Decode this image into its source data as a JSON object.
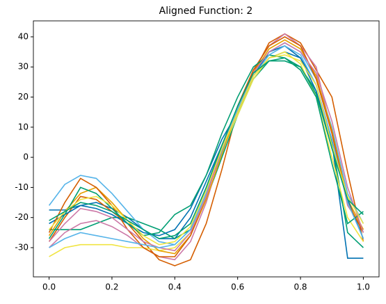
{
  "chart_data": {
    "type": "line",
    "title": "Aligned Function: 2",
    "x": [
      0,
      0.05,
      0.1,
      0.15,
      0.2,
      0.25,
      0.3,
      0.35,
      0.4,
      0.45,
      0.5,
      0.55,
      0.6,
      0.65,
      0.7,
      0.75,
      0.8,
      0.85,
      0.9,
      0.95,
      1
    ],
    "xlim": [
      -0.05,
      1.05
    ],
    "xticks": [
      {
        "value": 0,
        "label": "0.0"
      },
      0.2,
      0.4,
      0.6,
      0.8,
      {
        "value": 1,
        "label": "1.0"
      }
    ],
    "ylim": [
      -39.7,
      45.3
    ],
    "yticks": [
      -30,
      -20,
      -10,
      0,
      10,
      20,
      30,
      40
    ],
    "series": [
      {
        "color": "#0072B2",
        "values": [
          -17.5,
          -17.5,
          -16,
          -15,
          -17,
          -20,
          -24,
          -27,
          -27,
          -20,
          -8,
          4,
          15,
          26,
          33,
          35,
          33,
          24,
          5,
          -33.5,
          -33.5
        ]
      },
      {
        "color": "#D55E00",
        "values": [
          -28,
          -20,
          -13,
          -14,
          -18,
          -22,
          -28,
          -34,
          -36,
          -34,
          -22,
          -4,
          16,
          28,
          38,
          41,
          38,
          29,
          20,
          -5,
          -28
        ]
      },
      {
        "color": "#009E73",
        "values": [
          -24,
          -24,
          -24,
          -22,
          -20,
          -20,
          -22,
          -24,
          -27,
          -24,
          -14,
          0,
          14,
          26,
          32,
          33,
          30,
          22,
          5,
          -25,
          -30
        ]
      },
      {
        "color": "#CC79A7",
        "values": [
          -30,
          -25,
          -22,
          -21,
          -23,
          -26,
          -30,
          -33,
          -34,
          -28,
          -15,
          2,
          17,
          29,
          37,
          41,
          37,
          30,
          8,
          -16,
          -24
        ]
      },
      {
        "color": "#F0E442",
        "values": [
          -33,
          -30,
          -29,
          -29,
          -29,
          -30,
          -30,
          -31,
          -30,
          -25,
          -12,
          2,
          14,
          26,
          33,
          35,
          31,
          20,
          0,
          -20,
          -28
        ]
      },
      {
        "color": "#56B4E9",
        "values": [
          -16,
          -9,
          -6,
          -7,
          -12,
          -18,
          -24,
          -28,
          -29,
          -24,
          -12,
          2,
          15,
          27,
          35,
          38,
          35,
          26,
          10,
          -12,
          -22
        ]
      },
      {
        "color": "#E69F00",
        "values": [
          -26,
          -18,
          -12,
          -10,
          -15,
          -21,
          -27,
          -31,
          -32,
          -26,
          -14,
          1,
          16,
          28,
          36,
          39,
          36,
          27,
          9,
          -14,
          -24
        ]
      },
      {
        "color": "#0072B2",
        "values": [
          -22,
          -19,
          -16,
          -17,
          -19,
          -22,
          -25,
          -26,
          -24,
          -17,
          -6,
          6,
          15,
          27,
          35,
          37,
          33,
          22,
          3,
          -14,
          -27
        ]
      },
      {
        "color": "#D55E00",
        "values": [
          -25,
          -15,
          -7,
          -10,
          -16,
          -24,
          -30,
          -33,
          -33,
          -26,
          -13,
          3,
          17,
          29,
          37,
          40,
          37,
          26,
          8,
          -15,
          -25
        ]
      },
      {
        "color": "#009E73",
        "values": [
          -27,
          -19,
          -10,
          -12,
          -17,
          -22,
          -26,
          -25,
          -19,
          -16,
          -6,
          8,
          20,
          30,
          34,
          33,
          29,
          20,
          -2,
          -22,
          -18
        ]
      },
      {
        "color": "#CC79A7",
        "values": [
          -28,
          -22,
          -17,
          -18,
          -20,
          -24,
          -28,
          -30,
          -31,
          -25,
          -13,
          3,
          16,
          28,
          35,
          38,
          35,
          28,
          12,
          -10,
          -25
        ]
      },
      {
        "color": "#56B4E9",
        "values": [
          -30,
          -27,
          -25,
          -26,
          -27,
          -28,
          -29,
          -30,
          -29,
          -24,
          -10,
          4,
          16,
          27,
          34,
          37,
          34,
          24,
          6,
          -15,
          -27
        ]
      },
      {
        "color": "#F0E442",
        "values": [
          -24,
          -18,
          -14,
          -13,
          -16,
          -21,
          -26,
          -29,
          -28,
          -23,
          -11,
          3,
          15,
          27,
          33,
          34,
          32,
          24,
          4,
          -13,
          -22
        ]
      },
      {
        "color": "#009E73",
        "values": [
          -21,
          -18,
          -15,
          -16,
          -18,
          -21,
          -24,
          -27,
          -26,
          -22,
          -10,
          4,
          17,
          28,
          32,
          32,
          30,
          21,
          3,
          -14,
          -19
        ]
      }
    ]
  }
}
